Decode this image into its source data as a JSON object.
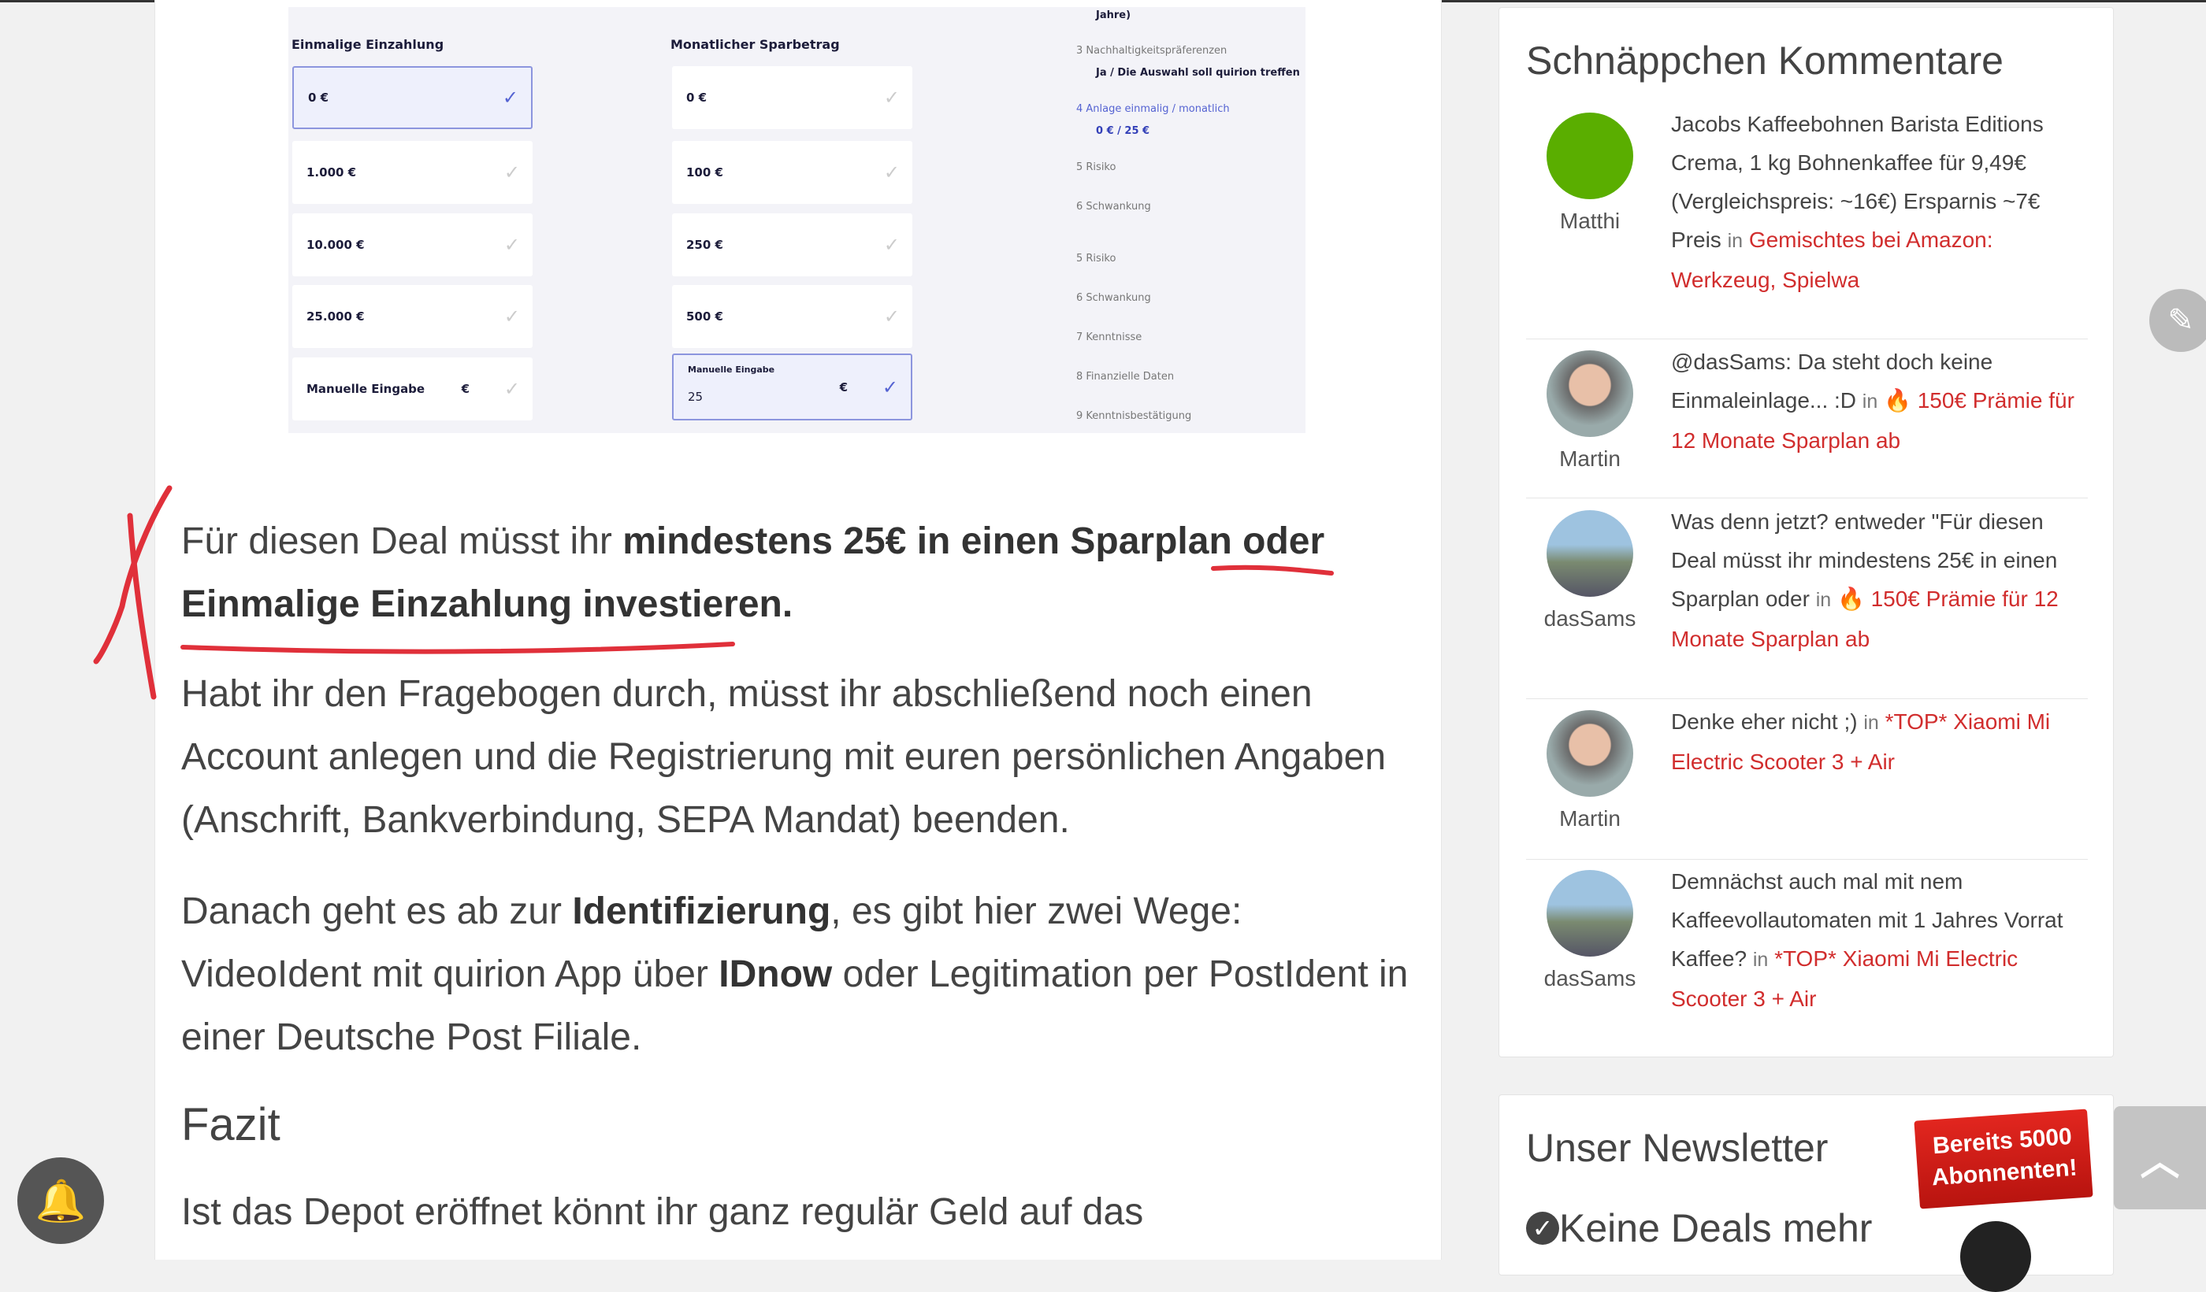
{
  "screenshot": {
    "col1_title": "Einmalige Einzahlung",
    "col2_title": "Monatlicher Sparbetrag",
    "col1": [
      "0 €",
      "1.000 €",
      "10.000 €",
      "25.000 €",
      "Manuelle Eingabe"
    ],
    "col2": [
      "0 €",
      "100 €",
      "250 €",
      "500 €"
    ],
    "manual_label": "Manuelle Eingabe",
    "manual_value": "25",
    "currency": "€",
    "steps": {
      "top": "Jahre)",
      "s3": "3  Nachhaltigkeitspräferenzen",
      "s3v": "Ja / Die Auswahl soll quirion treffen",
      "s4": "4  Anlage einmalig / monatlich",
      "s4v": "0 € / 25 €",
      "s5": "5  Risiko",
      "s6": "6  Schwankung",
      "s5b": "5  Risiko",
      "s6b": "6  Schwankung",
      "s7": "7  Kenntnisse",
      "s8": "8  Finanzielle Daten",
      "s9": "9  Kenntnisbestätigung"
    }
  },
  "article": {
    "p1_a": "Für diesen Deal müsst ihr ",
    "p1_b": "mindestens 25€ in einen Sparplan oder Einmalige Einzahlung investieren.",
    "p2": "Habt ihr den Fragebogen durch, müsst ihr abschließend noch einen Account anlegen und die Registrierung mit euren persönlichen Angaben (Anschrift, Bankverbindung, SEPA Mandat) beenden.",
    "p3_a": "Danach geht es ab zur ",
    "p3_b": "Identifizierung",
    "p3_c": ", es gibt hier zwei Wege: VideoIdent mit quirion App über ",
    "p3_d": "IDnow",
    "p3_e": " oder Legitimation per PostIdent in einer Deutsche Post Filiale.",
    "h_fazit": "Fazit",
    "p4": "Ist das Depot eröffnet könnt ihr ganz regulär Geld auf das"
  },
  "sidebar": {
    "title": "Schnäppchen Kommentare",
    "in": "in",
    "comments": [
      {
        "user": "Matthi",
        "text": "Jacobs Kaffeebohnen Barista Editions Crema, 1 kg Bohnenkaffee für 9,49€ (Vergleichspreis: ~16€) Ersparnis ~7€ Preis",
        "link": "Gemischtes bei Amazon: Werkzeug, Spielwa"
      },
      {
        "user": "Martin",
        "text": "@dasSams: Da steht doch keine Einmaleinlage... :D",
        "link": "🔥 150€ Prämie für 12 Monate Sparplan ab"
      },
      {
        "user": "dasSams",
        "text": "Was denn jetzt? entweder \"Für diesen Deal müsst ihr mindestens 25€ in einen Sparplan oder",
        "link": "🔥 150€ Prämie für 12 Monate Sparplan ab"
      },
      {
        "user": "Martin",
        "text": "Denke eher nicht ;)",
        "link": "*TOP* Xiaomi Mi Electric Scooter 3 + Air"
      },
      {
        "user": "dasSams",
        "text": "Demnächst auch mal mit nem Kaffeevollautomaten mit 1 Jahres Vorrat Kaffee?",
        "link": "*TOP* Xiaomi Mi Electric Scooter 3 + Air"
      }
    ],
    "newsletter_title": "Unser Newsletter",
    "newsletter_item": "Keine Deals mehr",
    "badge": "Bereits 5000 Abonnenten!"
  },
  "colors": {
    "link": "#d12d2d",
    "annotation": "#e0303a",
    "avatar_green": "#5aae00",
    "badge_red": "#d0201c"
  }
}
